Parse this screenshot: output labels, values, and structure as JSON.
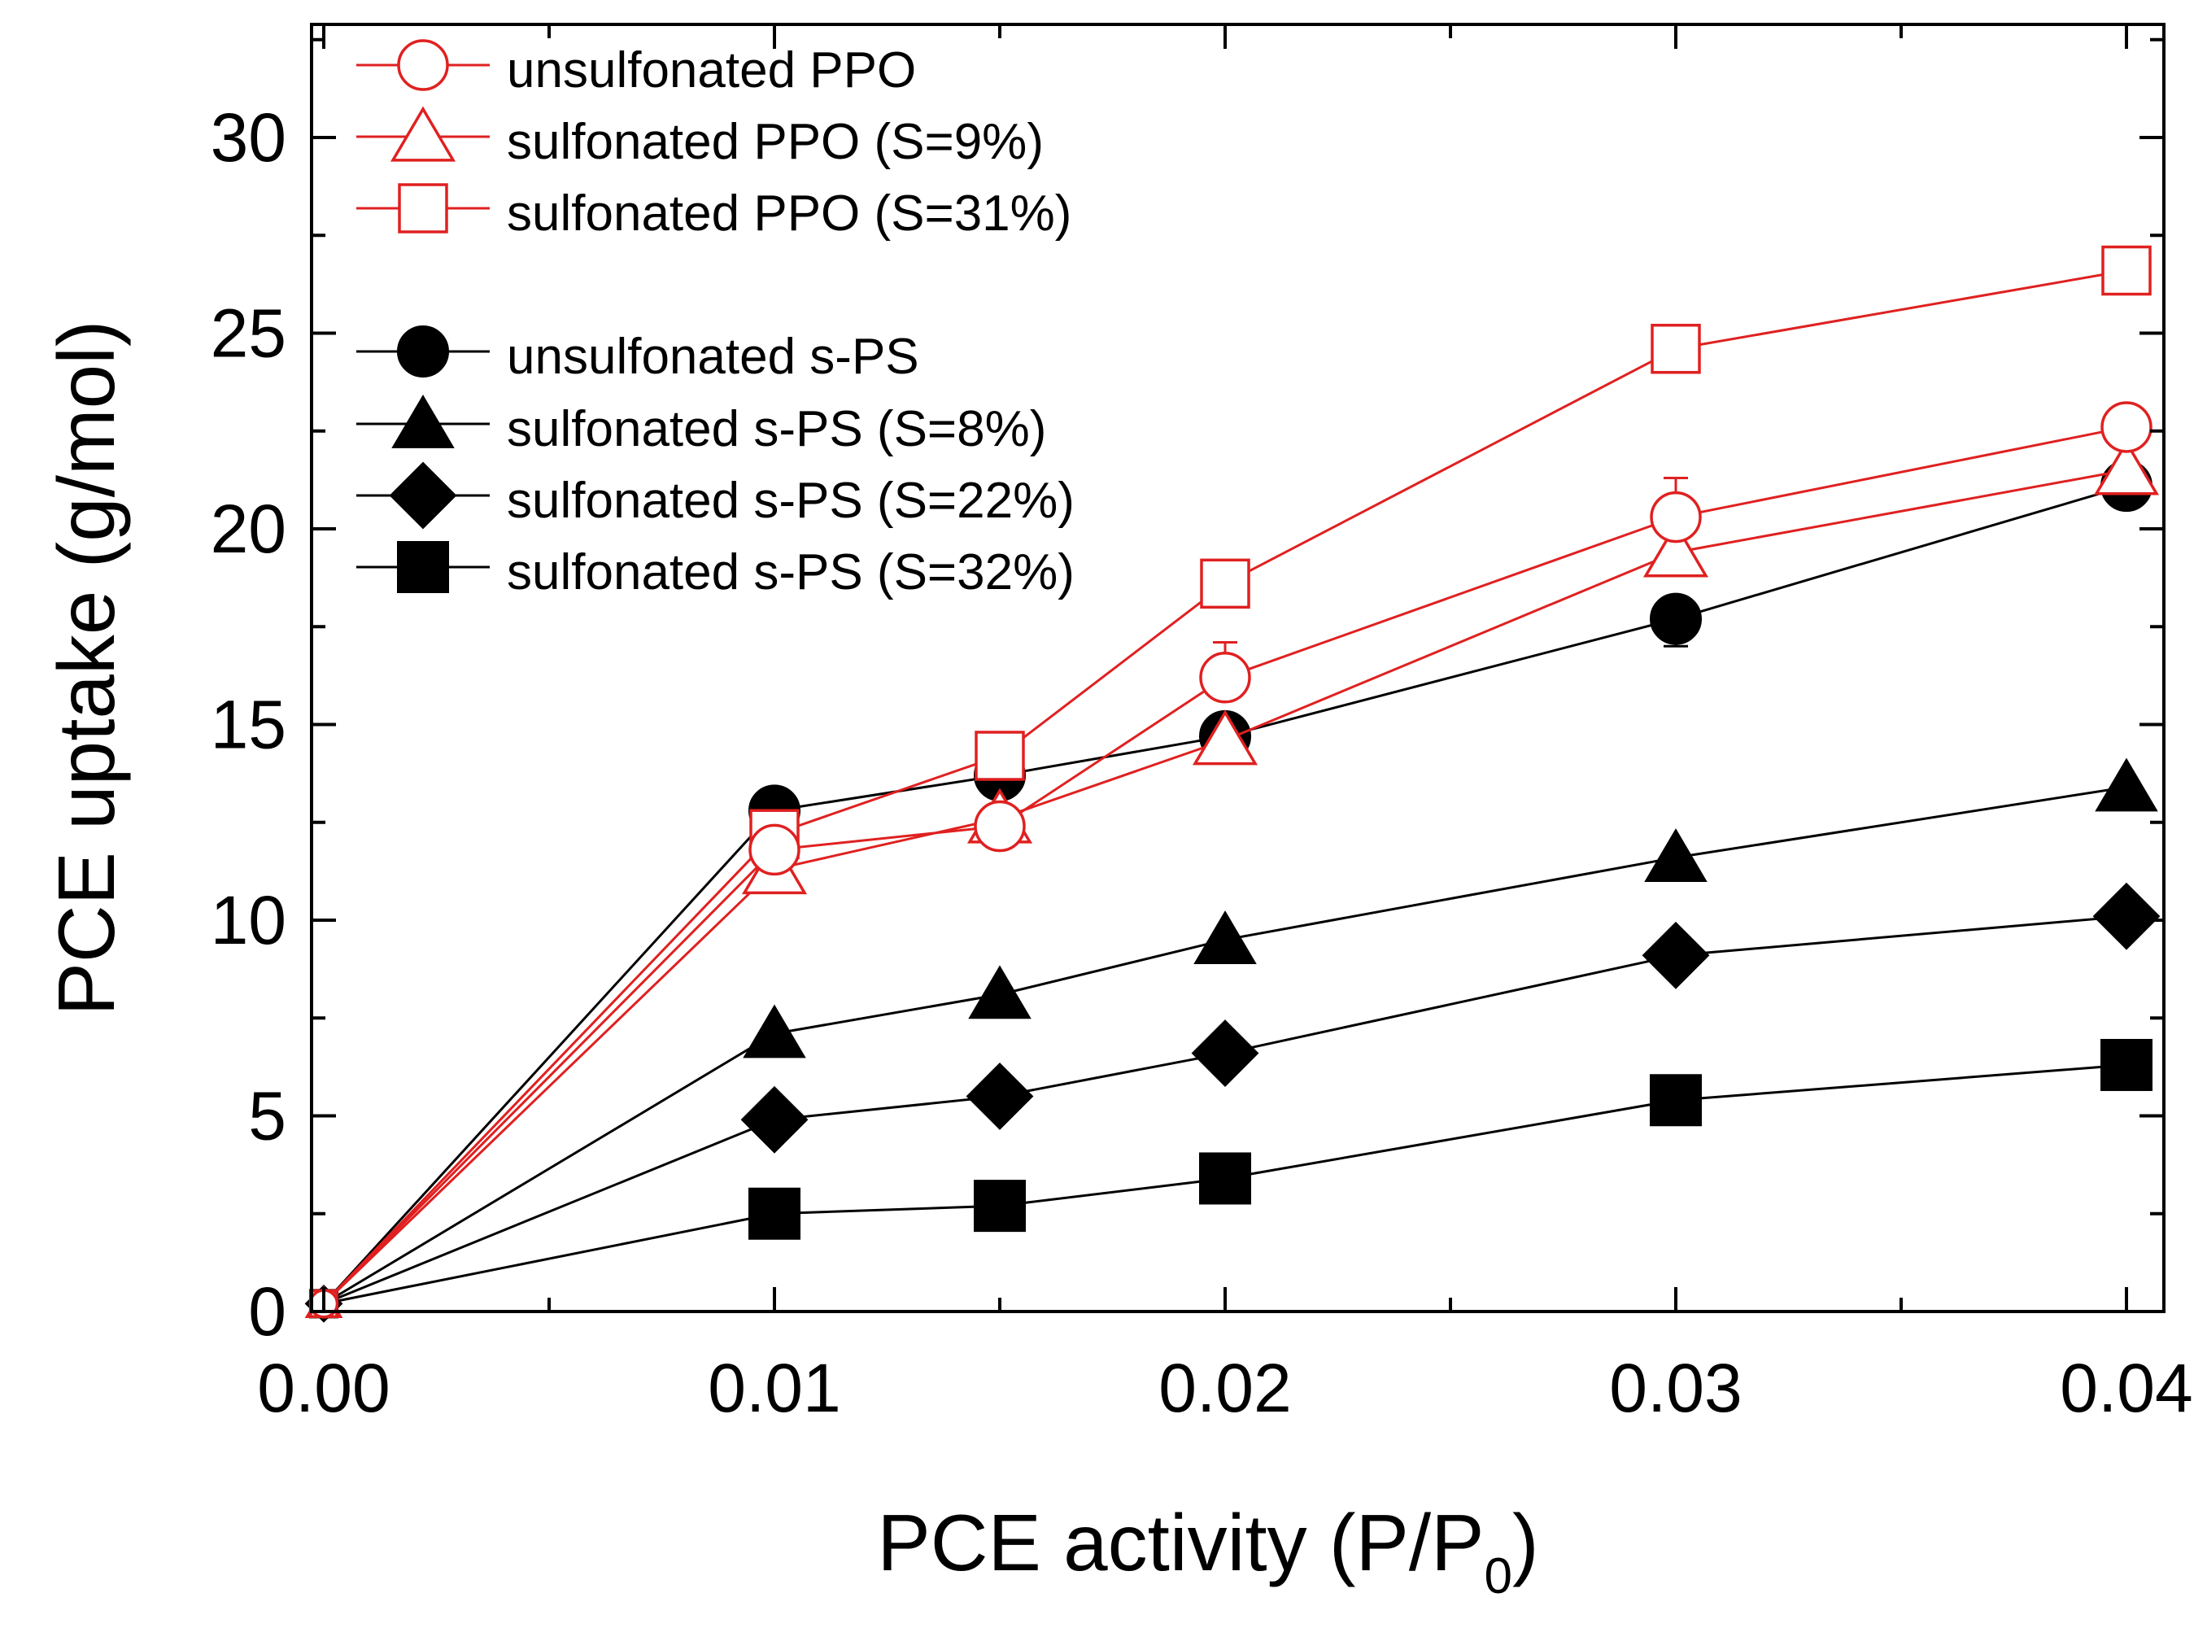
{
  "chart_data": {
    "type": "line",
    "title": "",
    "xlabel": "PCE activity (P/P",
    "xlabel_subscript": "0",
    "xlabel_close": ")",
    "ylabel": "PCE uptake (g/mol)",
    "xlim": [
      0,
      0.041
    ],
    "ylim": [
      0,
      32.8
    ],
    "x": [
      0,
      0.01,
      0.015,
      0.02,
      0.03,
      0.04
    ],
    "x_ticks": [
      0,
      0.01,
      0.02,
      0.03,
      0.04
    ],
    "x_tick_labels": [
      "0.00",
      "0.01",
      "0.02",
      "0.03",
      "0.04"
    ],
    "x_minor_ticks": [
      0.005,
      0.015,
      0.025,
      0.035
    ],
    "y_ticks": [
      0,
      5,
      10,
      15,
      20,
      25,
      30
    ],
    "y_tick_labels": [
      "0",
      "5",
      "10",
      "15",
      "20",
      "25",
      "30"
    ],
    "y_minor_ticks": [
      2.5,
      7.5,
      12.5,
      17.5,
      22.5,
      27.5,
      32.5
    ],
    "grid": false,
    "legend_position": "top-left",
    "series": [
      {
        "name": "unsulfonated PPO",
        "color": "#e02020",
        "marker": "circle",
        "filled": false,
        "values": [
          0.2,
          11.8,
          12.4,
          16.2,
          20.3,
          22.6
        ],
        "error_up": [
          0,
          0,
          0,
          0.9,
          1.0,
          0
        ]
      },
      {
        "name": "sulfonated PPO (S=9%)",
        "color": "#e02020",
        "marker": "triangle",
        "filled": false,
        "values": [
          0.2,
          11.3,
          12.6,
          14.6,
          19.4,
          21.5
        ]
      },
      {
        "name": "sulfonated PPO (S=31%)",
        "color": "#e02020",
        "marker": "square",
        "filled": false,
        "values": [
          0.2,
          12.2,
          14.2,
          18.6,
          24.6,
          26.6
        ]
      },
      {
        "name": "unsulfonated s-PS",
        "color": "#000000",
        "marker": "circle",
        "filled": true,
        "values": [
          0.2,
          12.8,
          13.7,
          14.7,
          17.7,
          21.1
        ],
        "error_up": [
          0,
          0,
          0,
          0,
          0,
          0
        ],
        "error_down": [
          0,
          0,
          0,
          0,
          0.7,
          0
        ]
      },
      {
        "name": "sulfonated s-PS (S=8%)",
        "color": "#000000",
        "marker": "triangle",
        "filled": true,
        "values": [
          0.2,
          7.1,
          8.1,
          9.5,
          11.6,
          13.4
        ]
      },
      {
        "name": "sulfonated s-PS (S=22%)",
        "color": "#000000",
        "marker": "diamond",
        "filled": true,
        "values": [
          0.2,
          4.9,
          5.5,
          6.6,
          9.1,
          10.1
        ]
      },
      {
        "name": "sulfonated s-PS (S=32%)",
        "color": "#000000",
        "marker": "square",
        "filled": true,
        "values": [
          0.2,
          2.5,
          2.7,
          3.4,
          5.4,
          6.3
        ]
      }
    ]
  }
}
